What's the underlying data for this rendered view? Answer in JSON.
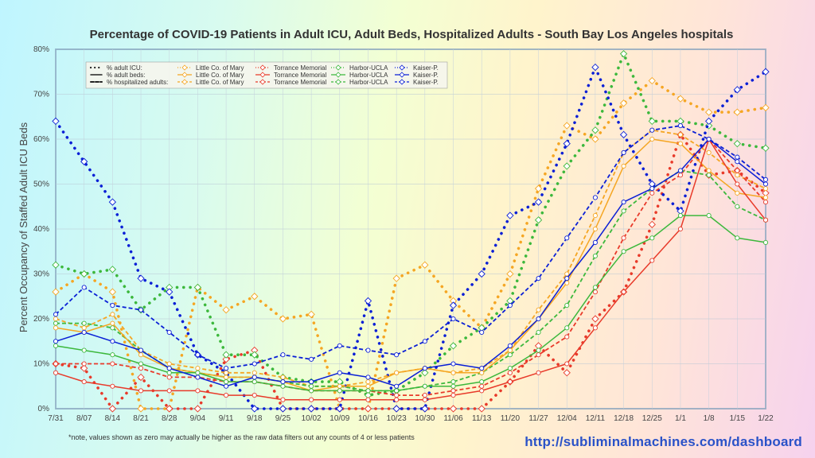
{
  "chart_data": {
    "type": "line",
    "title": "Percentage of COVID-19 Patients in Adult ICU, Adult Beds, Hospitalized Adults - South Bay Los Angeles hospitals",
    "ylabel": "Percent Occupancy of Staffed Adult ICU Beds",
    "xlabel": "",
    "ylim": [
      0,
      80
    ],
    "yticks": [
      "0%",
      "10%",
      "20%",
      "30%",
      "40%",
      "50%",
      "60%",
      "70%",
      "80%"
    ],
    "categories": [
      "7/31",
      "8/07",
      "8/14",
      "8/21",
      "8/28",
      "9/04",
      "9/11",
      "9/18",
      "9/25",
      "10/02",
      "10/09",
      "10/16",
      "10/23",
      "10/30",
      "11/06",
      "11/13",
      "11/20",
      "11/27",
      "12/04",
      "12/11",
      "12/18",
      "12/25",
      "1/1",
      "1/8",
      "1/15",
      "1/22"
    ],
    "legend": {
      "rows": [
        {
          "label": "% adult ICU:",
          "style": "dotted"
        },
        {
          "label": "% adult beds:",
          "style": "solid"
        },
        {
          "label": "% hospitalized adults:",
          "style": "dashed"
        }
      ],
      "hospitals": [
        "Little Co. of Mary",
        "Torrance Memorial",
        "Harbor-UCLA",
        "Kaiser-P."
      ]
    },
    "series": [
      {
        "hospital": "Little Co. of Mary",
        "metric": "icu",
        "color": "#f5a623",
        "values": [
          26,
          30,
          26,
          0,
          0,
          27,
          22,
          25,
          20,
          21,
          0,
          0,
          29,
          32,
          24,
          18,
          30,
          49,
          63,
          60,
          68,
          73,
          69,
          66,
          66,
          67
        ]
      },
      {
        "hospital": "Little Co. of Mary",
        "metric": "beds",
        "color": "#f5a623",
        "values": [
          18,
          17,
          19,
          12,
          9,
          8,
          7,
          7,
          6,
          4,
          5,
          5,
          8,
          9,
          8,
          8,
          13,
          20,
          28,
          40,
          54,
          60,
          59,
          53,
          48,
          47
        ]
      },
      {
        "hospital": "Little Co. of Mary",
        "metric": "hosp",
        "color": "#f5a623",
        "values": [
          20,
          18,
          21,
          13,
          10,
          9,
          8,
          8,
          7,
          5,
          5,
          6,
          8,
          9,
          8,
          9,
          13,
          22,
          30,
          43,
          57,
          62,
          61,
          57,
          52,
          49
        ]
      },
      {
        "hospital": "Torrance Memorial",
        "metric": "icu",
        "color": "#e83a2a",
        "values": [
          10,
          9,
          0,
          7,
          0,
          0,
          11,
          13,
          0,
          0,
          0,
          0,
          0,
          0,
          0,
          0,
          6,
          14,
          8,
          20,
          26,
          41,
          61,
          52,
          53,
          48
        ]
      },
      {
        "hospital": "Torrance Memorial",
        "metric": "beds",
        "color": "#e83a2a",
        "values": [
          8,
          6,
          5,
          4,
          4,
          4,
          3,
          3,
          2,
          2,
          2,
          2,
          2,
          2,
          3,
          4,
          6,
          8,
          10,
          18,
          26,
          33,
          40,
          60,
          50,
          42
        ]
      },
      {
        "hospital": "Torrance Memorial",
        "metric": "hosp",
        "color": "#e83a2a",
        "values": [
          10,
          10,
          10,
          9,
          7,
          7,
          6,
          6,
          5,
          4,
          4,
          4,
          3,
          3,
          4,
          5,
          8,
          12,
          16,
          26,
          38,
          48,
          52,
          60,
          53,
          46
        ]
      },
      {
        "hospital": "Harbor-UCLA",
        "metric": "icu",
        "color": "#3cb83c",
        "values": [
          32,
          30,
          31,
          22,
          27,
          27,
          12,
          12,
          7,
          6,
          6,
          3,
          4,
          8,
          14,
          18,
          24,
          42,
          54,
          62,
          79,
          64,
          64,
          63,
          59,
          58
        ]
      },
      {
        "hospital": "Harbor-UCLA",
        "metric": "beds",
        "color": "#3cb83c",
        "values": [
          14,
          13,
          12,
          10,
          8,
          8,
          6,
          6,
          5,
          4,
          4,
          4,
          4,
          5,
          5,
          6,
          9,
          13,
          18,
          27,
          35,
          38,
          43,
          43,
          38,
          37
        ]
      },
      {
        "hospital": "Harbor-UCLA",
        "metric": "hosp",
        "color": "#3cb83c",
        "values": [
          19,
          19,
          18,
          13,
          9,
          8,
          7,
          7,
          6,
          5,
          5,
          4,
          4,
          5,
          6,
          8,
          12,
          17,
          23,
          34,
          44,
          49,
          53,
          52,
          45,
          42
        ]
      },
      {
        "hospital": "Kaiser-P.",
        "metric": "icu",
        "color": "#0a1fd6",
        "values": [
          64,
          55,
          46,
          29,
          26,
          12,
          8,
          0,
          0,
          0,
          0,
          24,
          0,
          0,
          23,
          30,
          43,
          46,
          59,
          76,
          61,
          50,
          44,
          64,
          71,
          75
        ]
      },
      {
        "hospital": "Kaiser-P.",
        "metric": "beds",
        "color": "#0a1fd6",
        "values": [
          15,
          17,
          15,
          13,
          9,
          7,
          5,
          7,
          6,
          6,
          8,
          7,
          5,
          9,
          10,
          9,
          14,
          20,
          29,
          37,
          46,
          49,
          53,
          60,
          55,
          50
        ]
      },
      {
        "hospital": "Kaiser-P.",
        "metric": "hosp",
        "color": "#0a1fd6",
        "values": [
          21,
          27,
          23,
          22,
          17,
          12,
          9,
          10,
          12,
          11,
          14,
          13,
          12,
          15,
          20,
          17,
          23,
          29,
          38,
          47,
          57,
          62,
          63,
          60,
          56,
          51
        ]
      }
    ]
  },
  "footer": {
    "note": "*note, values shown as zero may actually be higher as the raw data filters out any counts of 4 or less patients",
    "url": "http://subliminalmachines.com/dashboard"
  }
}
